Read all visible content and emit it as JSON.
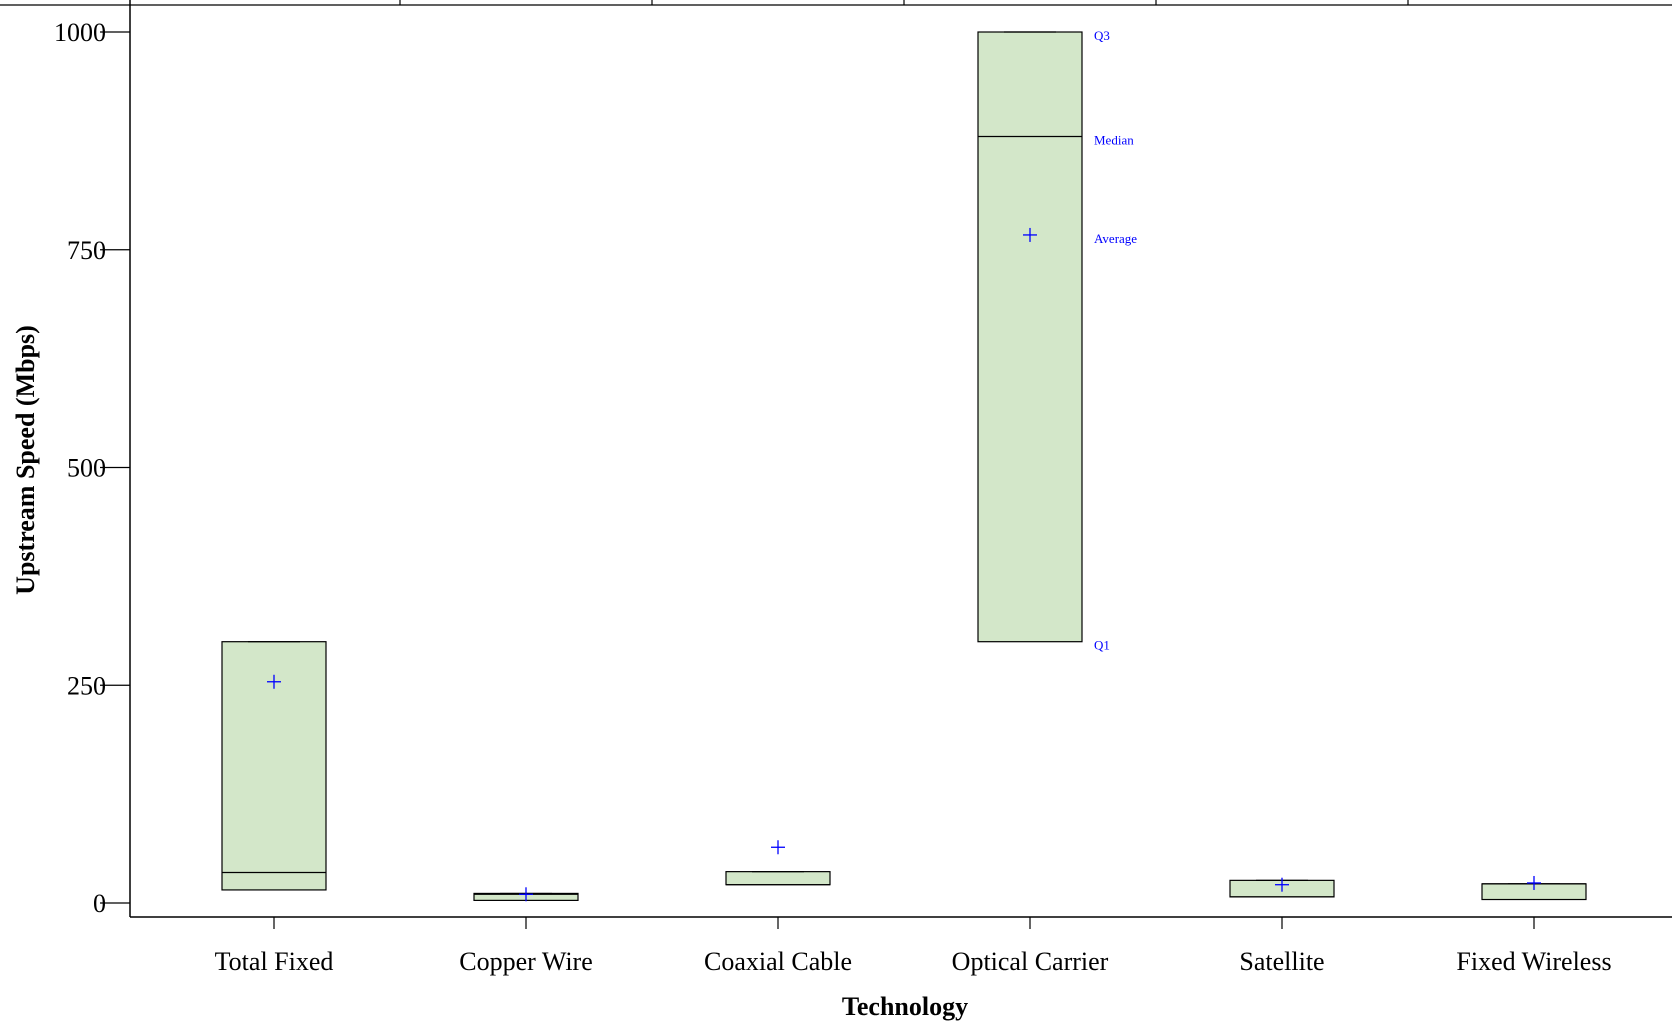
{
  "chart_data": {
    "type": "box",
    "xlabel": "Technology",
    "ylabel": "Upstream Speed (Mbps)",
    "ylim": [
      0,
      1000
    ],
    "yticks": [
      0,
      250,
      500,
      750,
      1000
    ],
    "categories": [
      "Total Fixed",
      "Copper Wire",
      "Coaxial Cable",
      "Optical Carrier",
      "Satellite",
      "Fixed Wireless"
    ],
    "boxes": [
      {
        "category": "Total Fixed",
        "q1": 15,
        "median": 35,
        "q3": 300,
        "mean": 254
      },
      {
        "category": "Copper Wire",
        "q1": 3,
        "median": 10,
        "q3": 11,
        "mean": 10
      },
      {
        "category": "Coaxial Cable",
        "q1": 21,
        "median": 21,
        "q3": 36,
        "mean": 64
      },
      {
        "category": "Optical Carrier",
        "q1": 300,
        "median": 880,
        "q3": 1000,
        "mean": 767
      },
      {
        "category": "Satellite",
        "q1": 7,
        "median": 7,
        "q3": 26,
        "mean": 21
      },
      {
        "category": "Fixed Wireless",
        "q1": 4,
        "median": 22,
        "q3": 22,
        "mean": 23
      }
    ],
    "annotations": {
      "category": "Optical Carrier",
      "labels": {
        "q3": "Q3",
        "median": "Median",
        "mean": "Average",
        "q1": "Q1"
      }
    },
    "colors": {
      "box_fill": "#d3e7c9",
      "box_stroke": "#000000",
      "mean_marker": "#0000ff",
      "annotation": "#0000ff"
    },
    "grid": false,
    "legend": "none"
  }
}
